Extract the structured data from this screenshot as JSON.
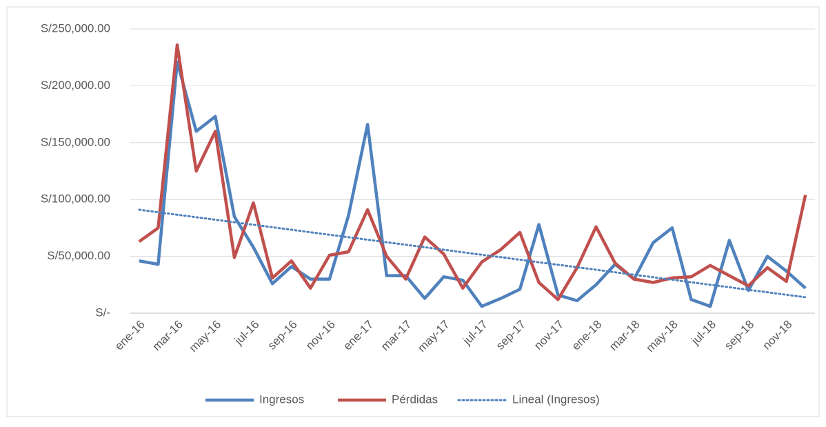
{
  "chart_data": {
    "type": "line",
    "categories": [
      "ene-16",
      null,
      "mar-16",
      null,
      "may-16",
      null,
      "jul-16",
      null,
      "sep-16",
      null,
      "nov-16",
      null,
      "ene-17",
      null,
      "mar-17",
      null,
      "may-17",
      null,
      "jul-17",
      null,
      "sep-17",
      null,
      "nov-17",
      null,
      "ene-18",
      null,
      "mar-18",
      null,
      "may-18",
      null,
      "jul-18",
      null,
      "sep-18",
      null,
      "nov-18",
      null
    ],
    "series": [
      {
        "name": "Ingresos",
        "color": "#4f81bd",
        "dashed": false,
        "values": [
          46000,
          43000,
          221000,
          160000,
          173000,
          85000,
          58000,
          26000,
          41000,
          30000,
          30000,
          86000,
          166000,
          33000,
          33000,
          13000,
          32000,
          29000,
          6000,
          13000,
          21000,
          78000,
          16000,
          11000,
          25000,
          43000,
          30000,
          62000,
          75000,
          12000,
          6000,
          64000,
          20000,
          50000,
          37000,
          22000
        ]
      },
      {
        "name": "Pérdidas",
        "color": "#c0504d",
        "dashed": false,
        "values": [
          63000,
          75000,
          236000,
          125000,
          160000,
          49000,
          97000,
          31000,
          46000,
          22000,
          51000,
          54000,
          91000,
          50000,
          30000,
          67000,
          52000,
          22000,
          45000,
          56000,
          71000,
          27000,
          12000,
          40000,
          76000,
          44000,
          30000,
          27000,
          31000,
          32000,
          42000,
          33000,
          24000,
          40000,
          28000,
          104000
        ]
      },
      {
        "name": "Lineal (Ingresos)",
        "color": "#4f81bd",
        "dashed": true,
        "values": [
          91000,
          88800,
          86600,
          84400,
          82200,
          80000,
          77800,
          75600,
          73400,
          71200,
          69000,
          66800,
          64600,
          62400,
          60200,
          58000,
          55800,
          53600,
          51400,
          49200,
          47000,
          44800,
          42600,
          40400,
          38200,
          36000,
          33800,
          31600,
          29400,
          27200,
          25000,
          22800,
          20600,
          18400,
          16200,
          14000
        ]
      }
    ],
    "ylim": [
      0,
      250000
    ],
    "yticks": [
      {
        "value": 0,
        "label": "S/-"
      },
      {
        "value": 50000,
        "label": "S/50,000.00"
      },
      {
        "value": 100000,
        "label": "S/100,000.00"
      },
      {
        "value": 150000,
        "label": "S/150,000.00"
      },
      {
        "value": 200000,
        "label": "S/200,000.00"
      },
      {
        "value": 250000,
        "label": "S/250,000.00"
      }
    ],
    "grid": true,
    "legend": "bottom"
  }
}
